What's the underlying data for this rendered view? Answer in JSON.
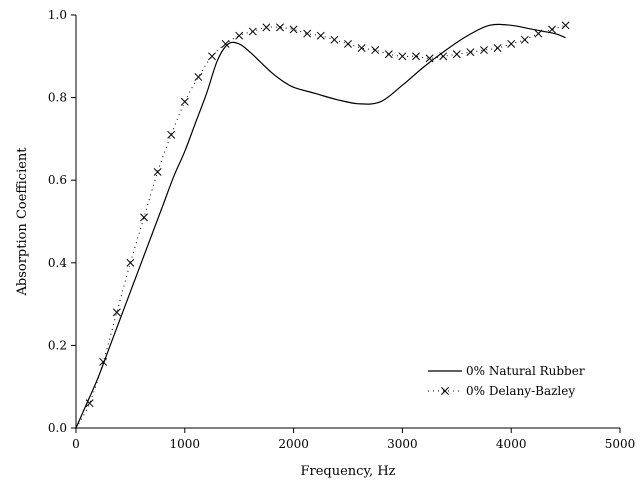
{
  "chart_data": {
    "type": "line",
    "title": "",
    "xlabel": "Frequency, Hz",
    "ylabel": "Absorption Coefficient",
    "xlim": [
      0,
      5000
    ],
    "ylim": [
      0,
      1.0
    ],
    "xticks": [
      0,
      1000,
      2000,
      3000,
      4000,
      5000
    ],
    "yticks": [
      0.0,
      0.2,
      0.4,
      0.6,
      0.8,
      1.0
    ],
    "xtick_labels": [
      "0",
      "1000",
      "2000",
      "3000",
      "4000",
      "5000"
    ],
    "ytick_labels": [
      "0.0",
      "0.2",
      "0.4",
      "0.6",
      "0.8",
      "1.0"
    ],
    "grid": false,
    "legend_position": "bottom-right",
    "series": [
      {
        "name": "0% Natural Rubber",
        "style": "solid-line",
        "x": [
          0,
          100,
          200,
          300,
          400,
          500,
          600,
          700,
          800,
          900,
          1000,
          1100,
          1200,
          1300,
          1400,
          1500,
          1600,
          1700,
          1800,
          1900,
          2000,
          2200,
          2400,
          2600,
          2800,
          3000,
          3200,
          3400,
          3600,
          3800,
          4000,
          4200,
          4400,
          4500
        ],
        "y": [
          0.0,
          0.06,
          0.12,
          0.19,
          0.26,
          0.33,
          0.4,
          0.47,
          0.54,
          0.61,
          0.67,
          0.74,
          0.81,
          0.89,
          0.93,
          0.93,
          0.91,
          0.885,
          0.86,
          0.84,
          0.825,
          0.81,
          0.795,
          0.785,
          0.79,
          0.83,
          0.875,
          0.915,
          0.95,
          0.975,
          0.975,
          0.965,
          0.955,
          0.945
        ]
      },
      {
        "name": "0% Delany-Bazley",
        "style": "dotted-with-x-markers",
        "x": [
          0,
          125,
          250,
          375,
          500,
          625,
          750,
          875,
          1000,
          1125,
          1250,
          1375,
          1500,
          1625,
          1750,
          1875,
          2000,
          2125,
          2250,
          2375,
          2500,
          2625,
          2750,
          2875,
          3000,
          3125,
          3250,
          3375,
          3500,
          3625,
          3750,
          3875,
          4000,
          4125,
          4250,
          4375,
          4500
        ],
        "y": [
          0.0,
          0.06,
          0.16,
          0.28,
          0.4,
          0.51,
          0.62,
          0.71,
          0.79,
          0.85,
          0.9,
          0.93,
          0.95,
          0.96,
          0.97,
          0.97,
          0.965,
          0.955,
          0.95,
          0.94,
          0.93,
          0.92,
          0.915,
          0.905,
          0.9,
          0.9,
          0.895,
          0.9,
          0.905,
          0.91,
          0.915,
          0.92,
          0.93,
          0.94,
          0.955,
          0.965,
          0.975
        ]
      }
    ]
  }
}
